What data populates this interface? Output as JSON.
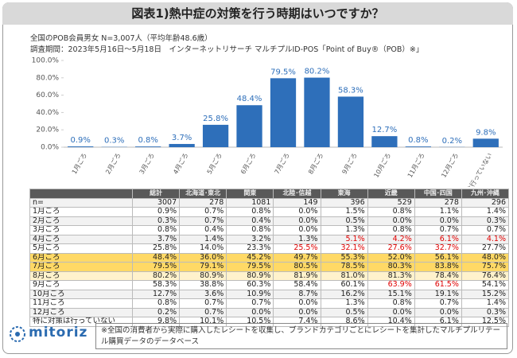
{
  "title": "図表1)熱中症の対策を行う時期はいつですか？",
  "subtitle": [
    "全国のPOB会員男女 N=3,007人（平均年齢48.6歳）",
    "調査期間：2023年5月16日～5月18日　インターネットリサーチ マルチプルID-POS「Point of Buy®（POB）※」"
  ],
  "chart_data": {
    "type": "bar",
    "color": "#2e6fba",
    "categories": [
      "1月ごろ",
      "2月ごろ",
      "3月ごろ",
      "4月ごろ",
      "5月ごろ",
      "6月ごろ",
      "7月ごろ",
      "8月ごろ",
      "9月ごろ",
      "10月ごろ",
      "11月ごろ",
      "12月ごろ",
      "特に対策は行っていない"
    ],
    "values": [
      0.9,
      0.3,
      0.8,
      3.7,
      25.8,
      48.4,
      79.5,
      80.2,
      58.3,
      12.7,
      0.8,
      0.2,
      9.8
    ],
    "value_labels": [
      "0.9%",
      "0.3%",
      "0.8%",
      "3.7%",
      "25.8%",
      "48.4%",
      "79.5%",
      "80.2%",
      "58.3%",
      "12.7%",
      "0.8%",
      "0.2%",
      "9.8%"
    ],
    "ylim": [
      0,
      100
    ],
    "yticks": [
      {
        "value": 0,
        "label": "0.0%"
      },
      {
        "value": 20,
        "label": "20.0%"
      },
      {
        "value": 40,
        "label": "40.0%"
      },
      {
        "value": 60,
        "label": "60.0%"
      },
      {
        "value": 80,
        "label": "80.0%"
      },
      {
        "value": 100,
        "label": "100.0%"
      }
    ]
  },
  "table": {
    "header": [
      "総計",
      "北海道･東北",
      "関東",
      "北陸･信越",
      "東海",
      "近畿",
      "中国･四国",
      "九州･沖縄"
    ],
    "rows": [
      [
        "n=",
        "3007",
        "278",
        "1081",
        "149",
        "396",
        "529",
        "278",
        "296"
      ],
      [
        "1月ごろ",
        "0.9%",
        "0.7%",
        "0.8%",
        "0.0%",
        "1.5%",
        "0.8%",
        "1.1%",
        "1.4%"
      ],
      [
        "2月ごろ",
        "0.3%",
        "0.7%",
        "0.4%",
        "0.0%",
        "0.5%",
        "0.0%",
        "0.0%",
        "0.3%"
      ],
      [
        "3月ごろ",
        "0.8%",
        "0.4%",
        "0.8%",
        "0.0%",
        "1.3%",
        "0.8%",
        "0.7%",
        "0.7%"
      ],
      [
        "4月ごろ",
        "3.7%",
        "1.4%",
        "3.2%",
        "1.3%",
        "5.1%",
        "4.2%",
        "6.1%",
        "4.1%"
      ],
      [
        "5月ごろ",
        "25.8%",
        "14.0%",
        "23.3%",
        "25.5%",
        "32.1%",
        "27.6%",
        "32.7%",
        "27.7%"
      ],
      [
        "6月ごろ",
        "48.4%",
        "36.0%",
        "45.2%",
        "49.7%",
        "55.3%",
        "52.0%",
        "56.1%",
        "48.0%"
      ],
      [
        "7月ごろ",
        "79.5%",
        "79.1%",
        "79.5%",
        "80.5%",
        "78.5%",
        "80.3%",
        "83.8%",
        "75.7%"
      ],
      [
        "8月ごろ",
        "80.2%",
        "80.9%",
        "80.9%",
        "81.9%",
        "81.0%",
        "81.3%",
        "78.4%",
        "76.4%"
      ],
      [
        "9月ごろ",
        "58.3%",
        "38.8%",
        "60.3%",
        "58.4%",
        "60.1%",
        "63.9%",
        "61.5%",
        "54.1%"
      ],
      [
        "10月ごろ",
        "12.7%",
        "3.6%",
        "10.9%",
        "8.7%",
        "16.2%",
        "15.1%",
        "19.1%",
        "15.2%"
      ],
      [
        "11月ごろ",
        "0.8%",
        "0.7%",
        "0.7%",
        "0.0%",
        "1.3%",
        "0.8%",
        "0.7%",
        "1.4%"
      ],
      [
        "12月ごろ",
        "0.2%",
        "0.7%",
        "0.0%",
        "0.0%",
        "0.5%",
        "0.0%",
        "0.0%",
        "0.3%"
      ],
      [
        "特に対策は行っていない",
        "9.8%",
        "10.1%",
        "10.5%",
        "7.4%",
        "8.6%",
        "10.4%",
        "6.1%",
        "12.5%"
      ]
    ]
  },
  "footer": {
    "logo": "mitoriz",
    "note": "※全国の消費者から実際に購入したレシートを収集し、ブランドカテゴリごとにレシートを集計したマルチプルリテール購買データのデータベース"
  }
}
